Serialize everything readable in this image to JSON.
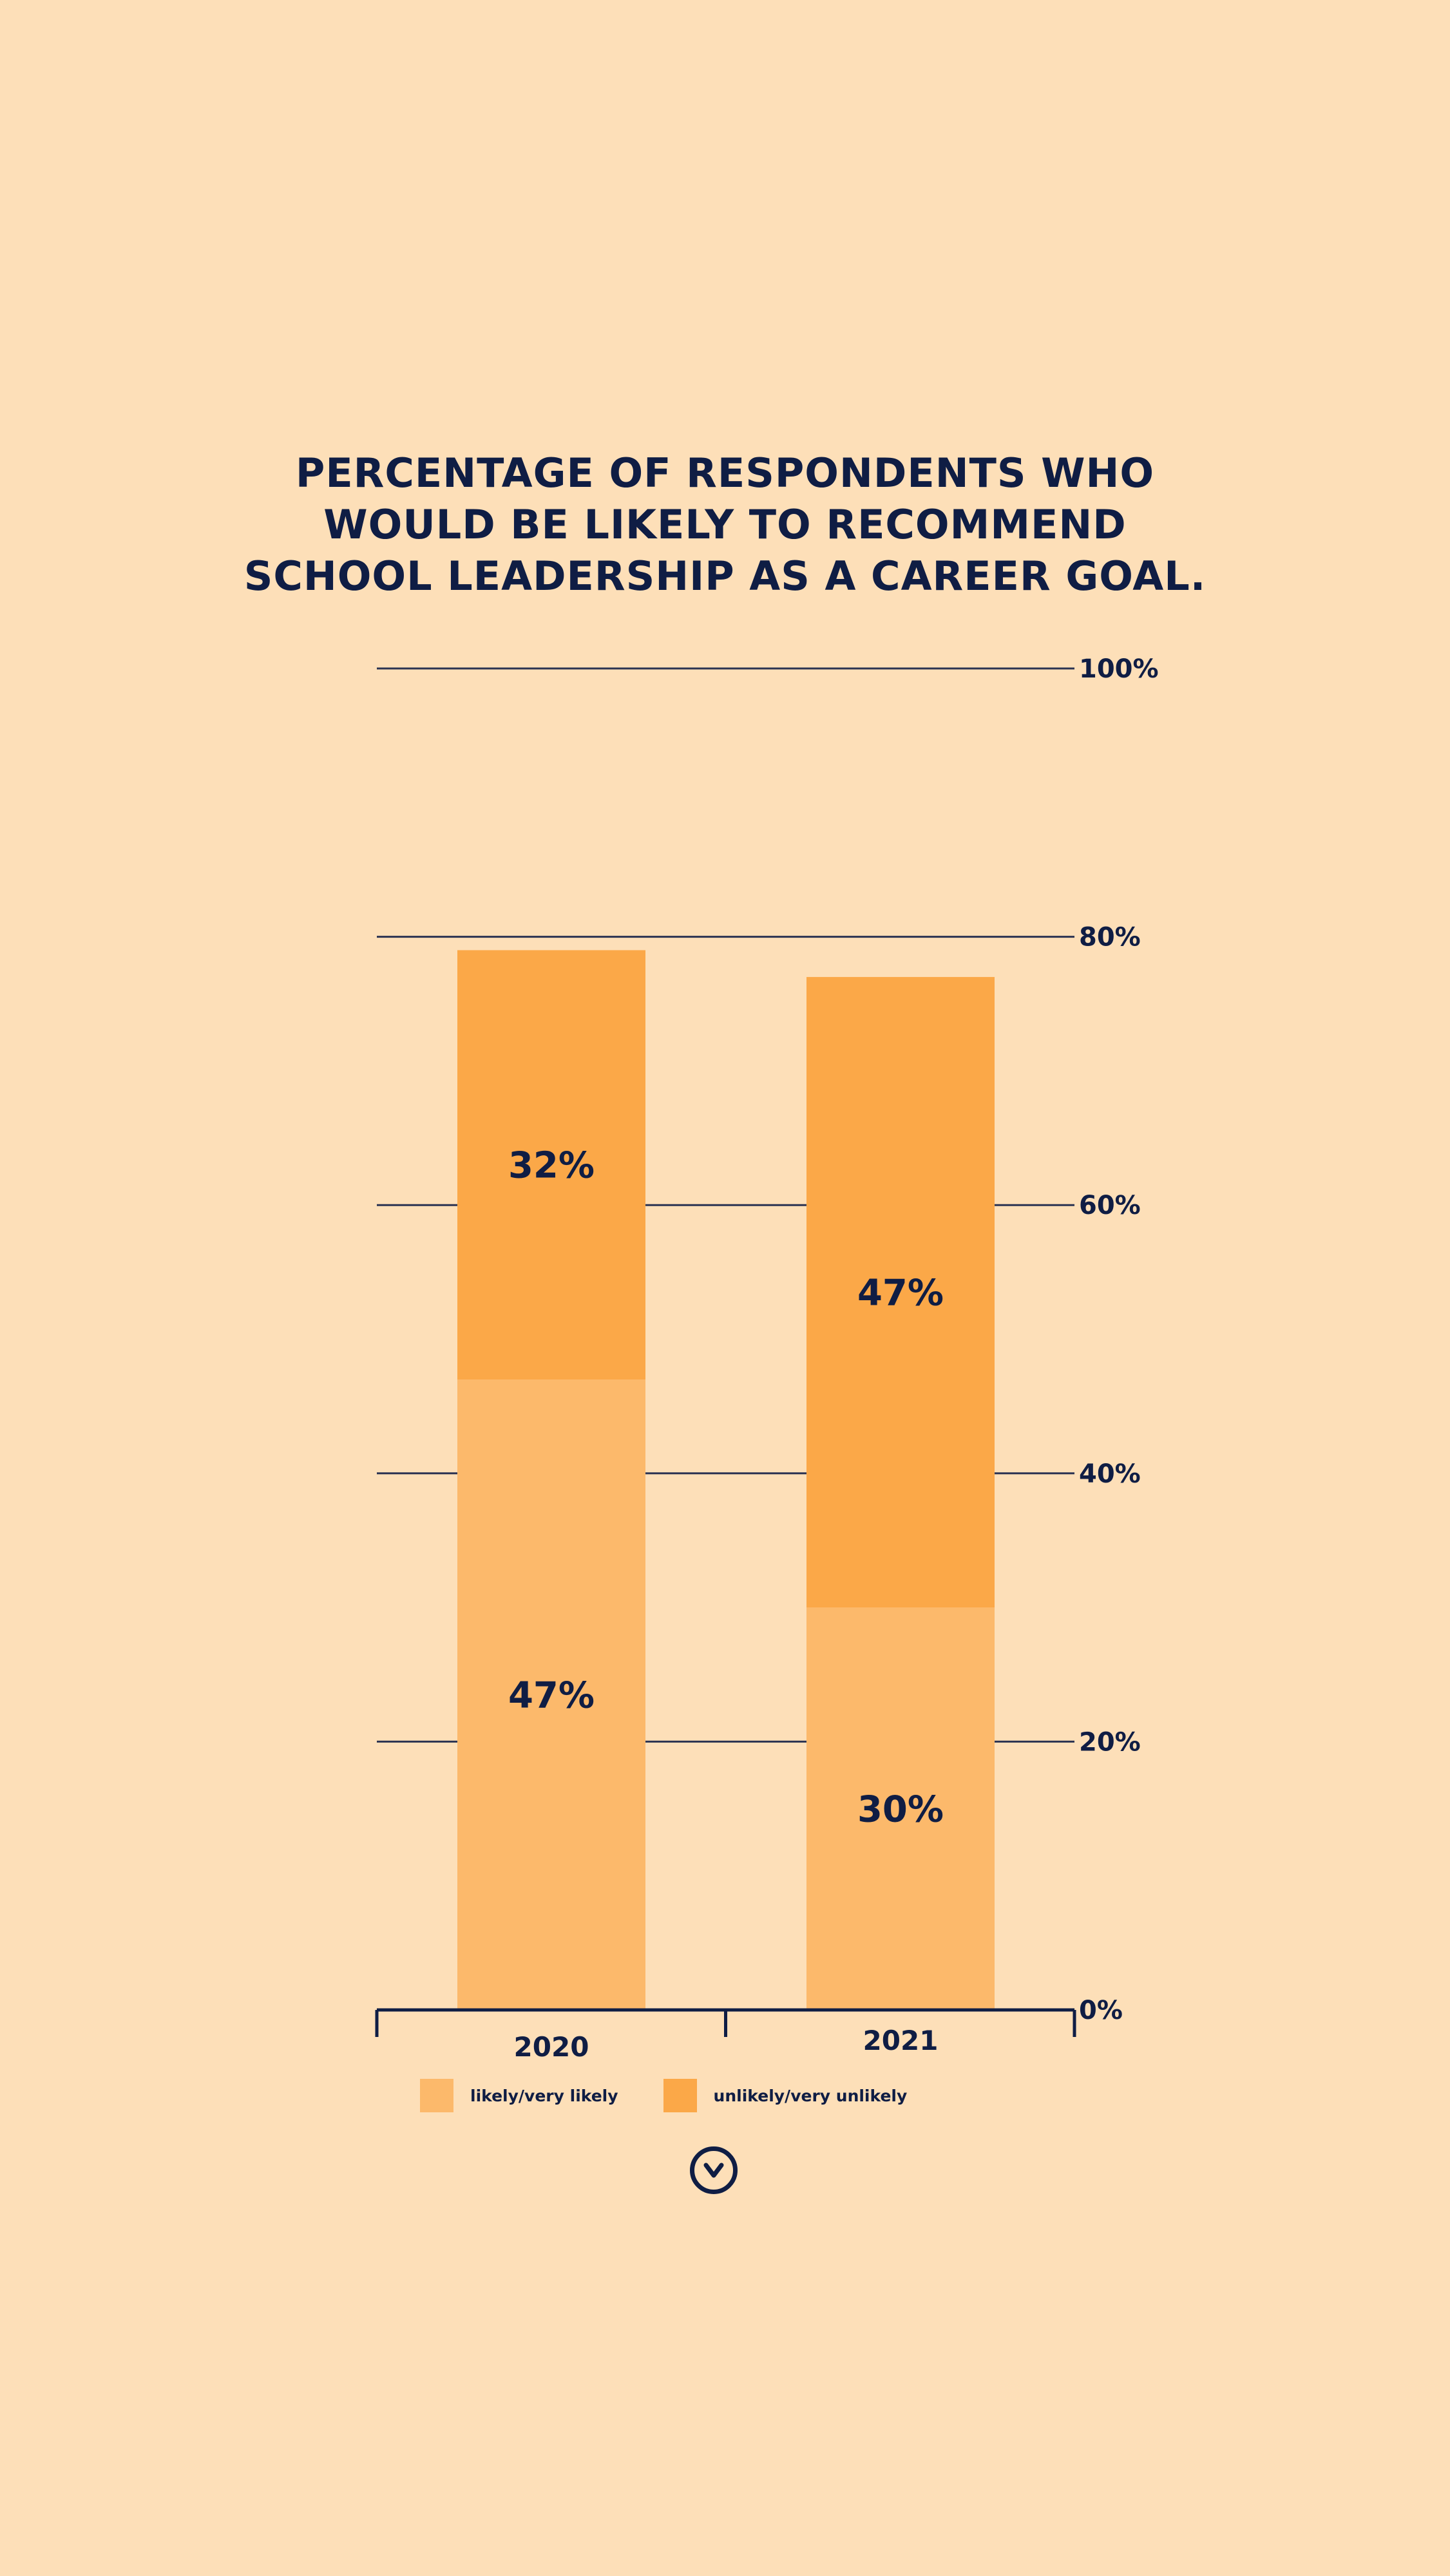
{
  "chart_data": {
    "type": "bar",
    "stacked": true,
    "title": [
      "PERCENTAGE OF RESPONDENTS WHO",
      "WOULD BE LIKELY TO RECOMMEND",
      "SCHOOL LEADERSHIP AS A CAREER GOAL."
    ],
    "categories": [
      "2020",
      "2021"
    ],
    "series": [
      {
        "name": "likely/very likely",
        "values": [
          47,
          30
        ],
        "labels": [
          "47%",
          "30%"
        ],
        "color": "#FCB96B"
      },
      {
        "name": "unlikely/very unlikely",
        "values": [
          32,
          47
        ],
        "labels": [
          "32%",
          "47%"
        ],
        "color": "#FBA848"
      }
    ],
    "ylim": [
      0,
      100
    ],
    "yticks": [
      0,
      20,
      40,
      60,
      80,
      100
    ],
    "ytick_labels": [
      "0%",
      "20%",
      "40%",
      "60%",
      "80%",
      "100%"
    ],
    "grid": true,
    "legend_position": "bottom-left"
  },
  "colors": {
    "background": "#FDDFB8",
    "text": "#0F1D44",
    "grid": "#2B3352"
  },
  "icons": {
    "scroll_down": "chevron-down-circle-icon"
  }
}
